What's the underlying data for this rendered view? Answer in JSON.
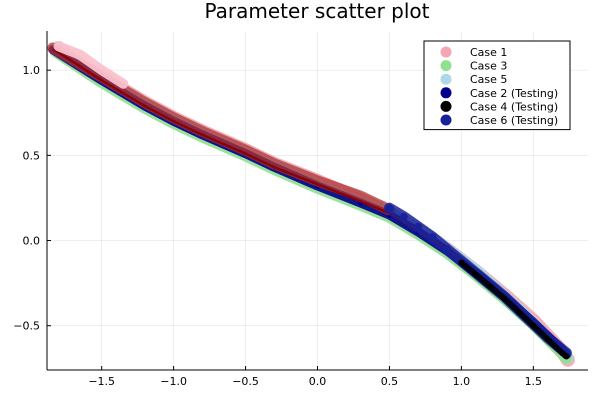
{
  "chart_data": {
    "type": "scatter",
    "title": "Parameter scatter plot",
    "xlabel": "",
    "ylabel": "",
    "xlim": [
      -1.88,
      1.88
    ],
    "ylim": [
      -0.76,
      1.23
    ],
    "grid": true,
    "legend_position": "top-right",
    "x_ticks": [
      -1.5,
      -1.0,
      -0.5,
      0.0,
      0.5,
      1.0,
      1.5
    ],
    "x_tick_labels": [
      "−1.5",
      "−1.0",
      "−0.5",
      "0.0",
      "0.5",
      "1.0",
      "1.5"
    ],
    "y_ticks": [
      -0.5,
      0.0,
      0.5,
      1.0
    ],
    "y_tick_labels": [
      "−0.5",
      "0.0",
      "0.5",
      "1.0"
    ],
    "series": [
      {
        "name": "Case 1",
        "color": "#F4A6B4",
        "points": [
          [
            -1.8,
            1.13
          ],
          [
            -1.7,
            1.06
          ],
          [
            -1.5,
            0.96
          ],
          [
            -1.2,
            0.81
          ],
          [
            -1.0,
            0.72
          ],
          [
            -0.8,
            0.64
          ],
          [
            -0.5,
            0.53
          ],
          [
            -0.3,
            0.45
          ],
          [
            0.0,
            0.35
          ],
          [
            0.3,
            0.24
          ],
          [
            0.5,
            0.16
          ],
          [
            0.7,
            0.06
          ],
          [
            0.9,
            -0.05
          ],
          [
            1.1,
            -0.18
          ],
          [
            1.3,
            -0.32
          ],
          [
            1.5,
            -0.47
          ],
          [
            1.6,
            -0.56
          ],
          [
            1.7,
            -0.65
          ],
          [
            1.74,
            -0.7
          ]
        ]
      },
      {
        "name": "Case 3",
        "color": "#90E090",
        "points": [
          [
            -1.82,
            1.11
          ],
          [
            -1.5,
            0.93
          ],
          [
            -1.2,
            0.78
          ],
          [
            -1.0,
            0.69
          ],
          [
            -0.8,
            0.61
          ],
          [
            -0.5,
            0.5
          ],
          [
            -0.3,
            0.42
          ],
          [
            0.0,
            0.31
          ],
          [
            0.3,
            0.21
          ],
          [
            0.5,
            0.14
          ],
          [
            0.7,
            0.04
          ],
          [
            0.9,
            -0.07
          ],
          [
            1.1,
            -0.2
          ],
          [
            1.3,
            -0.34
          ],
          [
            1.5,
            -0.49
          ],
          [
            1.7,
            -0.66
          ],
          [
            1.73,
            -0.69
          ]
        ]
      },
      {
        "name": "Case 5",
        "color": "#ADD8E6",
        "points": [
          [
            -1.82,
            1.12
          ],
          [
            -1.6,
            1.01
          ],
          [
            -1.3,
            0.85
          ],
          [
            -1.0,
            0.71
          ],
          [
            -0.7,
            0.59
          ],
          [
            -0.4,
            0.48
          ],
          [
            -0.1,
            0.37
          ],
          [
            0.2,
            0.26
          ],
          [
            0.5,
            0.17
          ],
          [
            0.8,
            0.02
          ],
          [
            1.1,
            -0.17
          ],
          [
            1.4,
            -0.4
          ],
          [
            1.7,
            -0.65
          ],
          [
            1.74,
            -0.69
          ]
        ]
      },
      {
        "name": "Case 2 (Testing)",
        "color": "#00008B",
        "points": [
          [
            -1.84,
            1.12
          ],
          [
            -1.5,
            0.94
          ],
          [
            -1.2,
            0.79
          ],
          [
            -1.0,
            0.7
          ],
          [
            -0.8,
            0.62
          ],
          [
            -0.5,
            0.51
          ],
          [
            -0.3,
            0.43
          ],
          [
            0.0,
            0.32
          ],
          [
            0.3,
            0.22
          ],
          [
            0.5,
            0.15
          ],
          [
            0.7,
            0.05
          ],
          [
            0.9,
            -0.06
          ],
          [
            1.1,
            -0.19
          ],
          [
            1.3,
            -0.33
          ],
          [
            1.5,
            -0.48
          ],
          [
            1.6,
            -0.56
          ],
          [
            1.7,
            -0.64
          ],
          [
            1.73,
            -0.67
          ]
        ]
      },
      {
        "name": "Case 4 (Testing)",
        "color": "#000000",
        "points": [
          [
            1.0,
            -0.13
          ],
          [
            1.1,
            -0.2
          ],
          [
            1.2,
            -0.27
          ],
          [
            1.3,
            -0.34
          ],
          [
            1.4,
            -0.42
          ],
          [
            1.5,
            -0.5
          ],
          [
            1.6,
            -0.58
          ],
          [
            1.7,
            -0.66
          ],
          [
            1.73,
            -0.68
          ]
        ]
      },
      {
        "name": "Case 6 (Testing)",
        "color": "#1A2299",
        "points": [
          [
            0.5,
            0.19
          ],
          [
            0.6,
            0.14
          ],
          [
            0.7,
            0.08
          ],
          [
            0.8,
            0.02
          ],
          [
            0.9,
            -0.05
          ],
          [
            1.0,
            -0.12
          ],
          [
            1.1,
            -0.19
          ],
          [
            1.2,
            -0.26
          ],
          [
            1.3,
            -0.33
          ],
          [
            1.4,
            -0.41
          ],
          [
            1.5,
            -0.49
          ],
          [
            1.6,
            -0.57
          ],
          [
            1.7,
            -0.64
          ],
          [
            1.73,
            -0.66
          ]
        ]
      }
    ],
    "overlays": [
      {
        "name": "red band",
        "color": "#B03030",
        "points": [
          [
            -1.84,
            1.13
          ],
          [
            -1.5,
            0.96
          ],
          [
            -1.2,
            0.81
          ],
          [
            -1.0,
            0.72
          ],
          [
            -0.8,
            0.64
          ],
          [
            -0.5,
            0.53
          ],
          [
            -0.3,
            0.45
          ],
          [
            0.0,
            0.35
          ],
          [
            0.3,
            0.26
          ],
          [
            0.5,
            0.18
          ]
        ]
      },
      {
        "name": "dark red line",
        "color": "#8B0000",
        "points": [
          [
            -1.83,
            1.12
          ],
          [
            -1.5,
            0.94
          ],
          [
            -1.2,
            0.79
          ],
          [
            -1.0,
            0.7
          ],
          [
            -0.8,
            0.62
          ],
          [
            -0.5,
            0.51
          ],
          [
            -0.3,
            0.43
          ],
          [
            0.0,
            0.33
          ],
          [
            0.3,
            0.23
          ],
          [
            0.5,
            0.16
          ],
          [
            0.7,
            0.06
          ],
          [
            0.9,
            -0.05
          ],
          [
            1.1,
            -0.18
          ],
          [
            1.3,
            -0.32
          ]
        ]
      },
      {
        "name": "light pink",
        "color": "#F9C2CC",
        "points": [
          [
            -1.8,
            1.14
          ],
          [
            -1.65,
            1.09
          ],
          [
            -1.5,
            1.0
          ],
          [
            -1.35,
            0.92
          ]
        ]
      }
    ]
  }
}
